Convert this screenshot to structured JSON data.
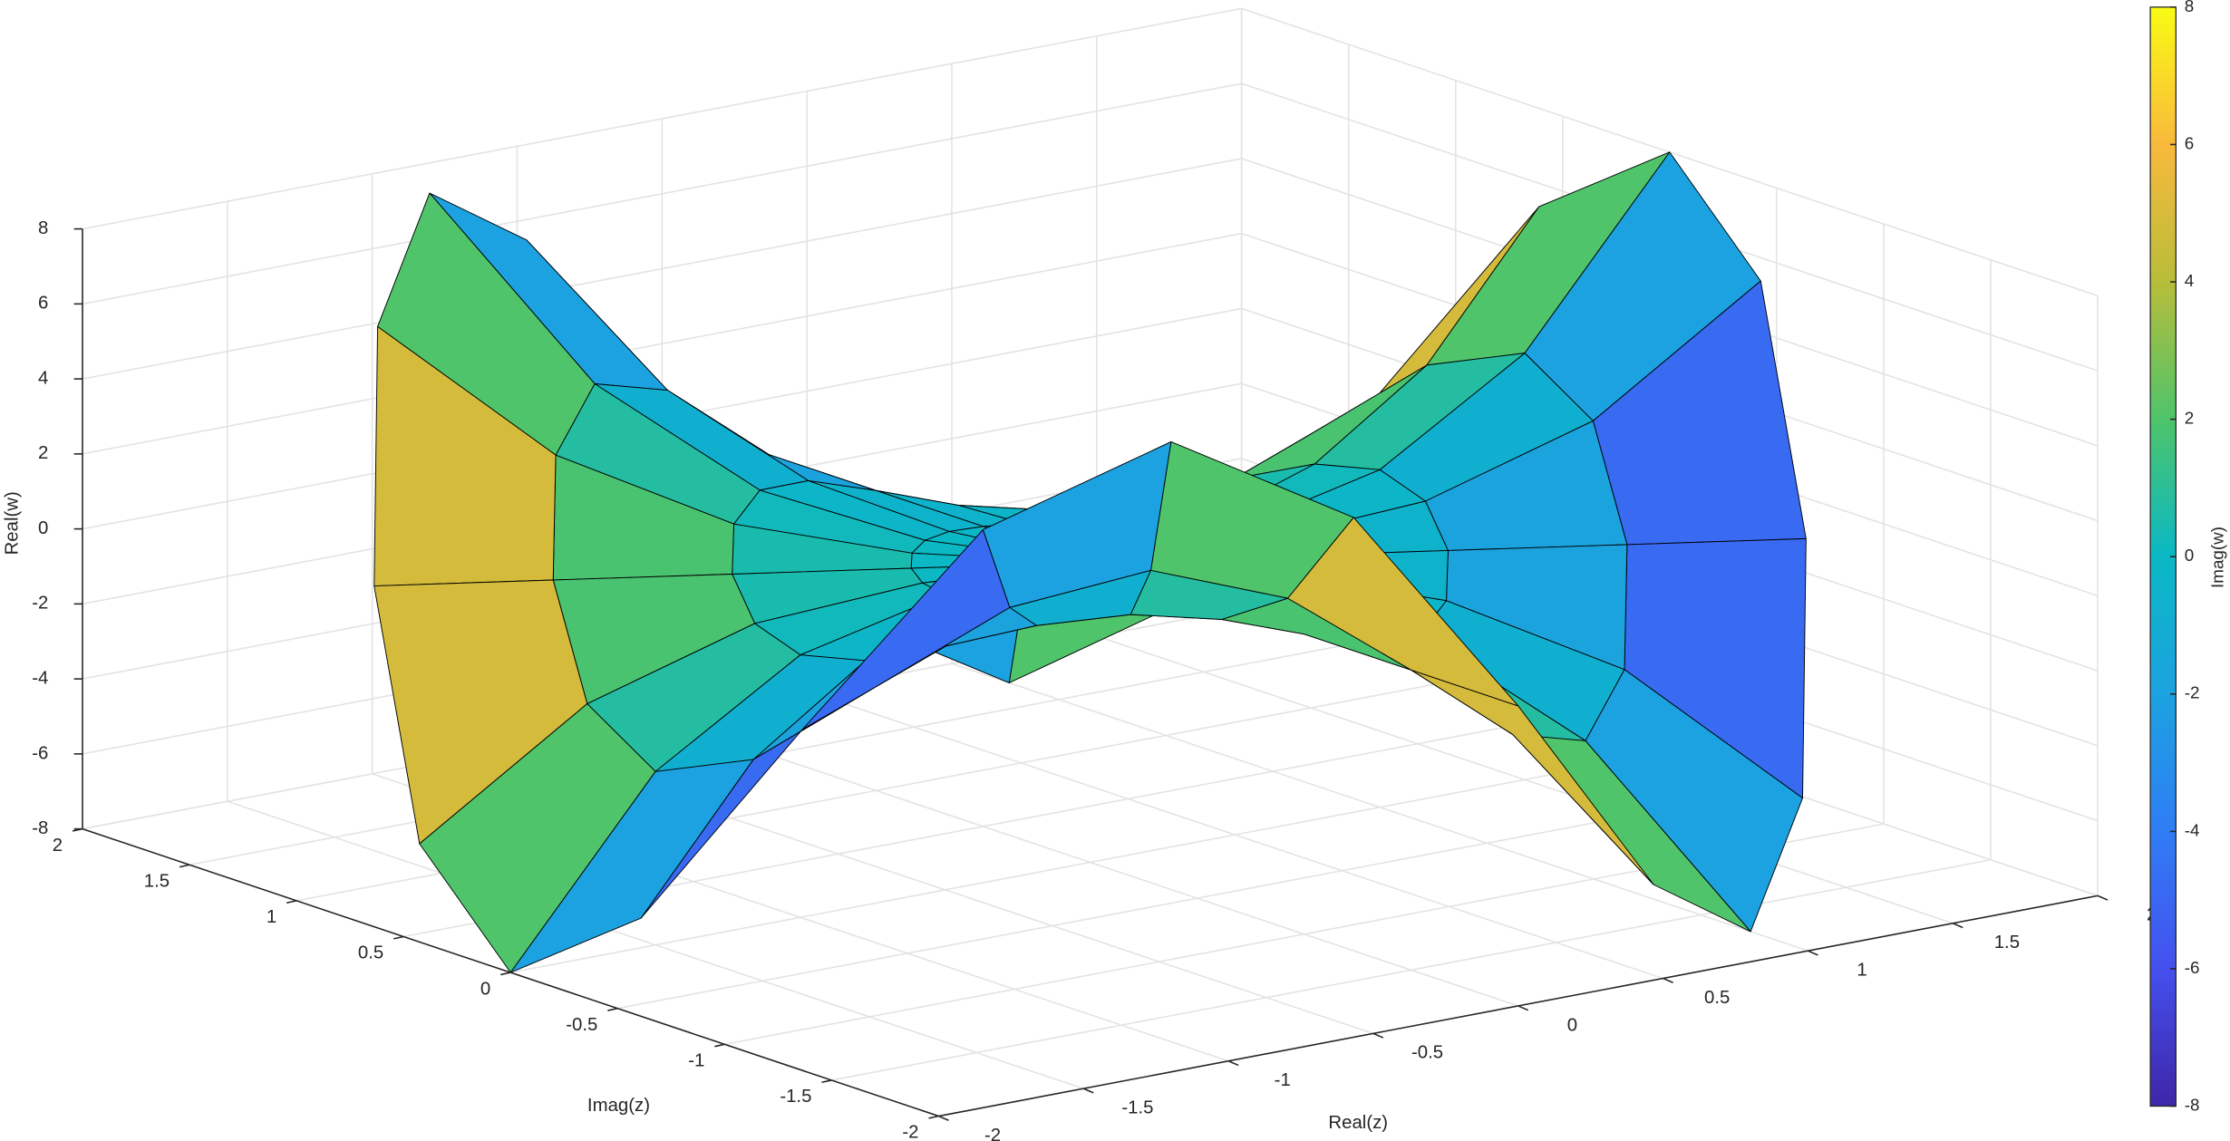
{
  "chart_data": {
    "type": "surface",
    "x_label": "Real(z)",
    "y_label": "Imag(z)",
    "z_label": "Real(w)",
    "colorbar_label": "Imag(w)",
    "xlim": [
      -2,
      2
    ],
    "xticks": [
      -2,
      -1.5,
      -1,
      -0.5,
      0,
      0.5,
      1,
      1.5,
      2
    ],
    "ylim": [
      -2,
      2
    ],
    "yticks": [
      -2,
      -1.5,
      -1,
      -0.5,
      0,
      0.5,
      1,
      1.5,
      2
    ],
    "zlim": [
      -8,
      8
    ],
    "zticks": [
      -8,
      -6,
      -4,
      -2,
      0,
      2,
      4,
      6,
      8
    ],
    "clim": [
      -8,
      8
    ],
    "cticks": [
      -8,
      -6,
      -4,
      -2,
      0,
      2,
      4,
      6,
      8
    ],
    "grid": true,
    "edge_color": "#000000",
    "colormap": [
      "#3e26a8",
      "#4450ee",
      "#2f7df5",
      "#1ca2e0",
      "#0ab8c5",
      "#4ec46a",
      "#b8bd3a",
      "#f9b93c",
      "#f9fb14"
    ],
    "r": [
      0,
      0.5,
      1,
      1.5,
      2
    ],
    "theta": [
      0,
      15,
      30,
      45,
      60,
      75,
      90,
      105,
      120,
      135,
      150,
      165,
      180,
      195,
      210,
      225,
      240,
      255,
      270,
      285,
      300,
      315,
      330,
      345,
      360
    ],
    "z": [
      [
        0,
        0,
        0,
        0,
        0,
        0,
        0,
        0,
        0,
        0,
        0,
        0,
        0,
        0,
        0,
        0,
        0,
        0,
        0,
        0,
        0,
        0,
        0,
        0,
        0
      ],
      [
        0.125,
        0.0884,
        0,
        -0.0884,
        -0.125,
        -0.0884,
        0,
        0.0884,
        0.125,
        0.0884,
        0,
        -0.0884,
        -0.125,
        -0.0884,
        0,
        0.0884,
        0.125,
        0.0884,
        0,
        -0.0884,
        -0.125,
        -0.0884,
        0,
        0.0884,
        0.125
      ],
      [
        1,
        0.7071,
        0,
        -0.7071,
        -1,
        -0.7071,
        0,
        0.7071,
        1,
        0.7071,
        0,
        -0.7071,
        -1,
        -0.7071,
        0,
        0.7071,
        1,
        0.7071,
        0,
        -0.7071,
        -1,
        -0.7071,
        0,
        0.7071,
        1
      ],
      [
        3.375,
        2.3865,
        0,
        -2.3865,
        -3.375,
        -2.3865,
        0,
        2.3865,
        3.375,
        2.3865,
        0,
        -2.3865,
        -3.375,
        -2.3865,
        0,
        2.3865,
        3.375,
        2.3865,
        0,
        -2.3865,
        -3.375,
        -2.3865,
        0,
        2.3865,
        3.375
      ],
      [
        8,
        5.6569,
        0,
        -5.6569,
        -8,
        -5.6569,
        0,
        5.6569,
        8,
        5.6569,
        0,
        -5.6569,
        -8,
        -5.6569,
        0,
        5.6569,
        8,
        5.6569,
        0,
        -5.6569,
        -8,
        -5.6569,
        0,
        5.6569,
        8
      ]
    ],
    "c": [
      [
        0,
        0,
        0,
        0,
        0,
        0,
        0,
        0,
        0,
        0,
        0,
        0,
        0,
        0,
        0,
        0,
        0,
        0,
        0,
        0,
        0,
        0,
        0,
        0,
        0
      ],
      [
        0,
        0.0884,
        0.125,
        0.0884,
        0,
        -0.0884,
        -0.125,
        -0.0884,
        0,
        0.0884,
        0.125,
        0.0884,
        0,
        -0.0884,
        -0.125,
        -0.0884,
        0,
        0.0884,
        0.125,
        0.0884,
        0,
        -0.0884,
        -0.125,
        -0.0884,
        0
      ],
      [
        0,
        0.7071,
        1,
        0.7071,
        0,
        -0.7071,
        -1,
        -0.7071,
        0,
        0.7071,
        1,
        0.7071,
        0,
        -0.7071,
        -1,
        -0.7071,
        0,
        0.7071,
        1,
        0.7071,
        0,
        -0.7071,
        -1,
        -0.7071,
        0
      ],
      [
        0,
        2.3865,
        3.375,
        2.3865,
        0,
        -2.3865,
        -3.375,
        -2.3865,
        0,
        2.3865,
        3.375,
        2.3865,
        0,
        -2.3865,
        -3.375,
        -2.3865,
        0,
        2.3865,
        3.375,
        2.3865,
        0,
        -2.3865,
        -3.375,
        -2.3865,
        0
      ],
      [
        0,
        5.6569,
        8,
        5.6569,
        0,
        -5.6569,
        -8,
        -5.6569,
        0,
        5.6569,
        8,
        5.6569,
        0,
        -5.6569,
        -8,
        -5.6569,
        0,
        5.6569,
        8,
        5.6569,
        0,
        -5.6569,
        -8,
        -5.6569,
        0
      ]
    ]
  }
}
